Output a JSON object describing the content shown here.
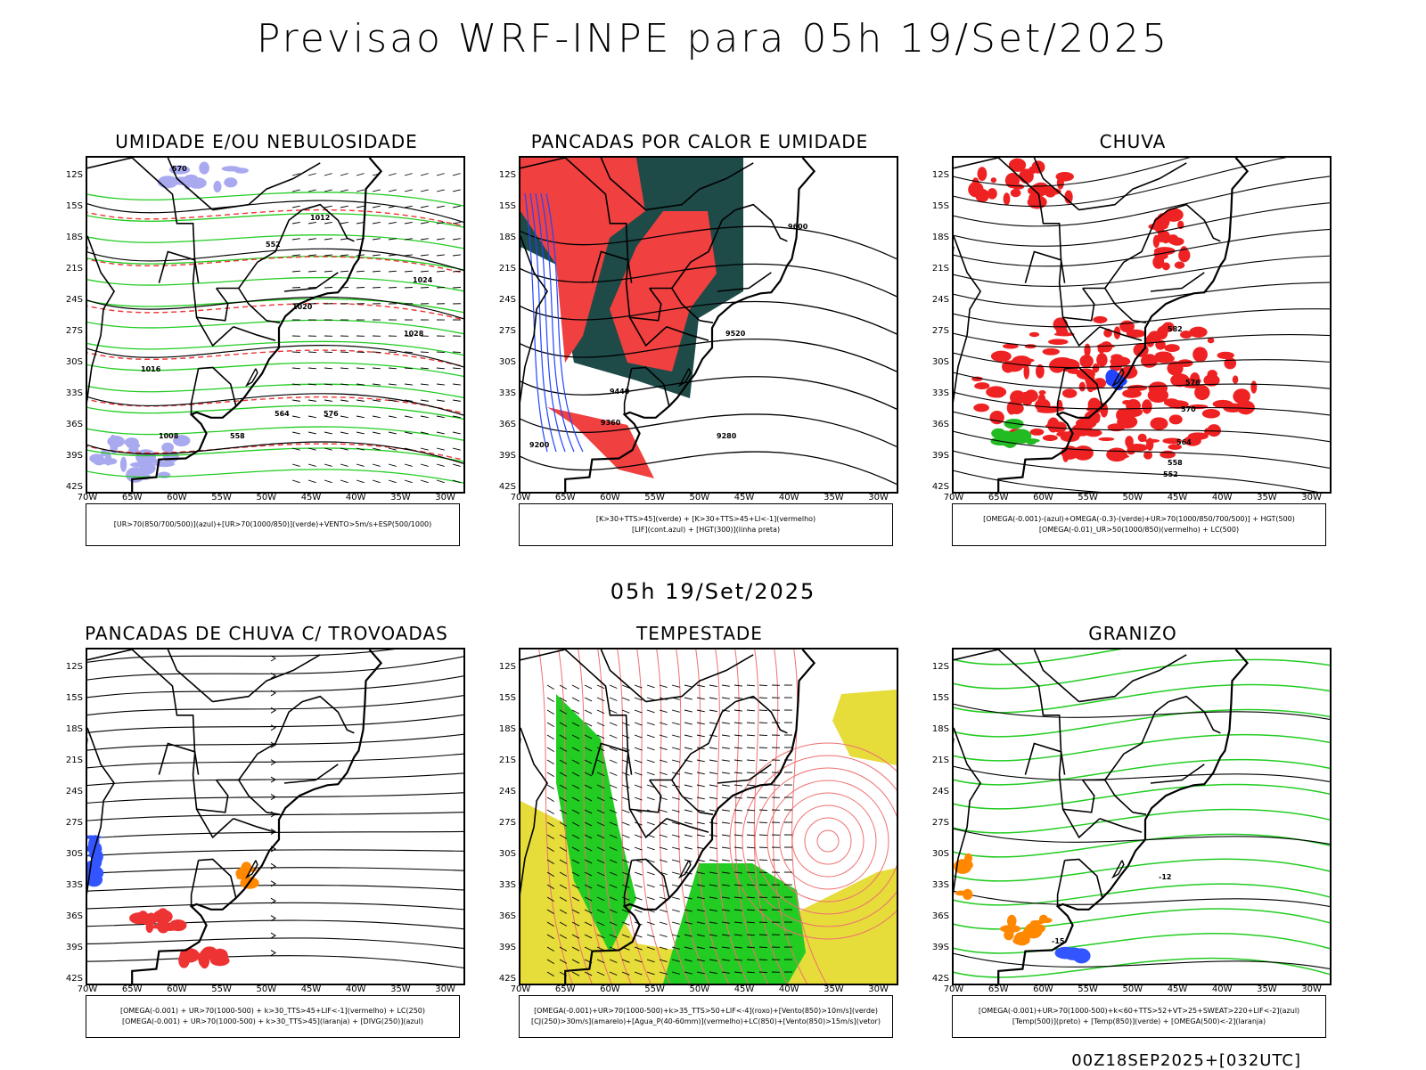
{
  "header": {
    "title": "Previsao WRF-INPE  para 05h 19/Set/2025"
  },
  "middle": {
    "title": "05h 19/Set/2025"
  },
  "footer": {
    "run": "00Z18SEP2025+[032UTC]"
  },
  "axes": {
    "lat_labels": [
      "12S",
      "15S",
      "18S",
      "21S",
      "24S",
      "27S",
      "30S",
      "33S",
      "36S",
      "39S",
      "42S"
    ],
    "lon_labels": [
      "70W",
      "65W",
      "60W",
      "55W",
      "50W",
      "45W",
      "40W",
      "35W",
      "30W"
    ]
  },
  "panels": [
    {
      "id": "umidade",
      "title": "UMIDADE E/OU NEBULOSIDADE",
      "legend": [
        "[UR>70(850/700/500)](azul)+[UR>70(1000/850)](verde)+VENTO>5m/s+ESP(500/1000)"
      ],
      "contour_labels": [
        "1008",
        "1012",
        "1016",
        "1020",
        "1024",
        "1028",
        "570",
        "576",
        "564",
        "558",
        "552"
      ],
      "colors": {
        "blue": "#a9a9f0",
        "green": "#22cc22",
        "red": "#ee3333"
      }
    },
    {
      "id": "pancadas_calor",
      "title": "PANCADAS POR CALOR E UMIDADE",
      "legend": [
        "[K>30+TTS>45](verde) + [K>30+TTS>45+LI<-1](vermelho)",
        "[LIF](cont.azul) + [HGT(300)](linha preta)"
      ],
      "contour_labels": [
        "9600",
        "9520",
        "9440",
        "9360",
        "9280",
        "9200"
      ],
      "colors": {
        "dark": "#1e4a48",
        "red": "#f04040",
        "blue": "#2244ff"
      }
    },
    {
      "id": "chuva",
      "title": "CHUVA",
      "legend": [
        "[OMEGA(-0.001)-(azul)+OMEGA(-0.3)-(verde)+UR>70(1000/850/700/500)] + HGT(500)",
        "[OMEGA(-0.01)_UR>50(1000/850)(vermelho) + LC(500)"
      ],
      "contour_labels": [
        "582",
        "576",
        "570",
        "564",
        "558",
        "552"
      ],
      "colors": {
        "red": "#ee2222",
        "green": "#22bb22",
        "blue": "#2244ff"
      }
    },
    {
      "id": "trovoadas",
      "title": "PANCADAS DE CHUVA C/ TROVOADAS",
      "legend": [
        "[OMEGA(-0.001) + UR>70(1000-500) + k>30_TTS>45+LIF<-1](vermelho) + LC(250)",
        "[OMEGA(-0.001) + UR>70(1000-500) + k>30_TTS>45](laranja) + [DIVG(250)](azul)"
      ],
      "contour_labels": [],
      "colors": {
        "red": "#ee3333",
        "orange": "#ff8800",
        "blue": "#3355ff"
      }
    },
    {
      "id": "tempestade",
      "title": "TEMPESTADE",
      "legend": [
        "[OMEGA(-0.001)+UR>70(1000-500)+k>35_TTS>50+LIF<-4](roxo)+[Vento(850)>10m/s](verde)",
        "[CJ(250)>30m/s](amarelo)+[Agua_P(40-60mm)](vermelho)+LC(850)+[Vento(850)>15m/s](vetor)"
      ],
      "contour_labels": [],
      "colors": {
        "yellow": "#e6dc3a",
        "green": "#22cc22",
        "red": "#ee4444"
      }
    },
    {
      "id": "granizo",
      "title": "GRANIZO",
      "legend": [
        "[OMEGA(-0.001)+UR>70(1000-500)+k<60+TTS>52+VT>25+SWEAT>220+LIF<-2](azul)",
        "[Temp(500)](preto) + [Temp(850)](verde) + [OMEGA(500)<-2](laranja)"
      ],
      "contour_labels": [
        "-12",
        "-15"
      ],
      "colors": {
        "green": "#22cc22",
        "orange": "#ff8800",
        "blue": "#3355ff"
      }
    }
  ]
}
